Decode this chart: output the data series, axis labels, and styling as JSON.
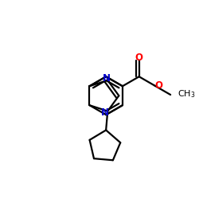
{
  "bg_color": "#ffffff",
  "bond_color": "#000000",
  "n_color": "#0000cc",
  "o_color": "#ff0000",
  "bond_width": 1.6,
  "figsize": [
    2.5,
    2.5
  ],
  "dpi": 100,
  "xlim": [
    0,
    10
  ],
  "ylim": [
    0,
    10
  ]
}
